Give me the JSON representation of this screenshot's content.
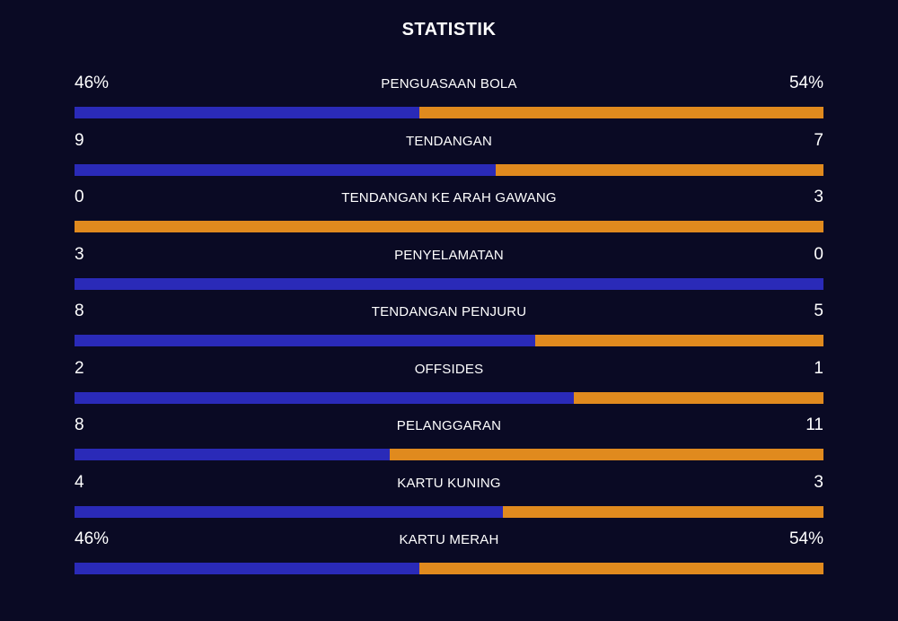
{
  "title": "STATISTIK",
  "colors": {
    "background": "#0a0a24",
    "home": "#2a2ab8",
    "away": "#e08a1e"
  },
  "chart_data": {
    "type": "bar",
    "title": "STATISTIK",
    "stats": [
      {
        "label": "PENGUASAAN BOLA",
        "home_text": "46%",
        "away_text": "54%",
        "home": 46,
        "away": 54
      },
      {
        "label": "TENDANGAN",
        "home_text": "9",
        "away_text": "7",
        "home": 9,
        "away": 7
      },
      {
        "label": "TENDANGAN KE ARAH GAWANG",
        "home_text": "0",
        "away_text": "3",
        "home": 0,
        "away": 3
      },
      {
        "label": "PENYELAMATAN",
        "home_text": "3",
        "away_text": "0",
        "home": 3,
        "away": 0
      },
      {
        "label": "TENDANGAN PENJURU",
        "home_text": "8",
        "away_text": "5",
        "home": 8,
        "away": 5
      },
      {
        "label": "OFFSIDES",
        "home_text": "2",
        "away_text": "1",
        "home": 2,
        "away": 1
      },
      {
        "label": "PELANGGARAN",
        "home_text": "8",
        "away_text": "11",
        "home": 8,
        "away": 11
      },
      {
        "label": "KARTU KUNING",
        "home_text": "4",
        "away_text": "3",
        "home": 4,
        "away": 3
      },
      {
        "label": "KARTU MERAH",
        "home_text": "46%",
        "away_text": "54%",
        "home": 46,
        "away": 54
      }
    ]
  }
}
